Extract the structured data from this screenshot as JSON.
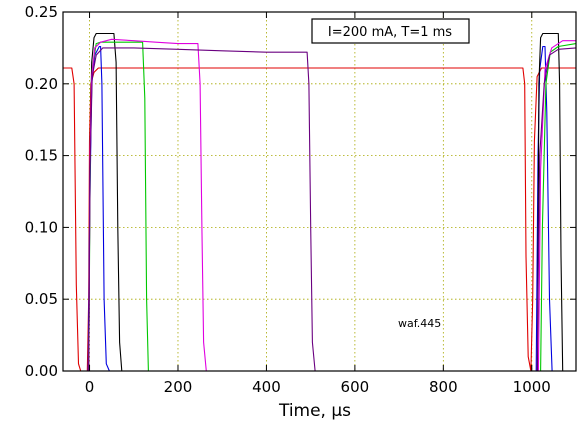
{
  "chart_data": {
    "type": "line",
    "xlabel": "Time, µs",
    "ylabel": "",
    "xlim": [
      -60,
      1100
    ],
    "ylim": [
      0,
      0.25
    ],
    "xticks": [
      0,
      200,
      400,
      600,
      800,
      1000
    ],
    "yticks": [
      0.0,
      0.05,
      0.1,
      0.15,
      0.2,
      0.25
    ],
    "xtick_labels": [
      "0",
      "200",
      "400",
      "600",
      "800",
      "1000"
    ],
    "ytick_labels": [
      "0.00",
      "0.05",
      "0.10",
      "0.15",
      "0.20",
      "0.25"
    ],
    "grid": true,
    "annotation_box": "I=200 mA, T=1 ms",
    "annotation_text": "waf.445",
    "series": [
      {
        "color": "#e00000",
        "points": [
          [
            -60,
            0.211
          ],
          [
            -40,
            0.211
          ],
          [
            -35,
            0.2
          ],
          [
            -30,
            0.06
          ],
          [
            -25,
            0.005
          ],
          [
            -20,
            0.0
          ],
          [
            -5,
            0.0
          ],
          [
            -2,
            0.05
          ],
          [
            0,
            0.16
          ],
          [
            3,
            0.2
          ],
          [
            10,
            0.208
          ],
          [
            20,
            0.211
          ],
          [
            980,
            0.211
          ],
          [
            984,
            0.2
          ],
          [
            987,
            0.08
          ],
          [
            992,
            0.01
          ],
          [
            998,
            0.0
          ],
          [
            1002,
            0.05
          ],
          [
            1006,
            0.16
          ],
          [
            1012,
            0.205
          ],
          [
            1022,
            0.211
          ],
          [
            1100,
            0.211
          ]
        ]
      },
      {
        "color": "#0000e0",
        "points": [
          [
            -60,
            0.0
          ],
          [
            -3,
            0.0
          ],
          [
            0,
            0.1
          ],
          [
            5,
            0.2
          ],
          [
            12,
            0.22
          ],
          [
            22,
            0.226
          ],
          [
            25,
            0.226
          ],
          [
            28,
            0.2
          ],
          [
            33,
            0.05
          ],
          [
            38,
            0.005
          ],
          [
            45,
            0.0
          ],
          [
            1010,
            0.0
          ],
          [
            1014,
            0.15
          ],
          [
            1018,
            0.21
          ],
          [
            1025,
            0.226
          ],
          [
            1030,
            0.226
          ],
          [
            1034,
            0.18
          ],
          [
            1040,
            0.05
          ],
          [
            1046,
            0.0
          ],
          [
            1100,
            0.0
          ]
        ]
      },
      {
        "color": "#000000",
        "points": [
          [
            -60,
            0.0
          ],
          [
            -2,
            0.0
          ],
          [
            1,
            0.15
          ],
          [
            5,
            0.215
          ],
          [
            10,
            0.232
          ],
          [
            15,
            0.235
          ],
          [
            55,
            0.235
          ],
          [
            60,
            0.215
          ],
          [
            64,
            0.1
          ],
          [
            68,
            0.02
          ],
          [
            73,
            0.0
          ],
          [
            1013,
            0.0
          ],
          [
            1016,
            0.2
          ],
          [
            1020,
            0.232
          ],
          [
            1025,
            0.235
          ],
          [
            1060,
            0.235
          ],
          [
            1063,
            0.2
          ],
          [
            1066,
            0.08
          ],
          [
            1070,
            0.0
          ],
          [
            1100,
            0.0
          ]
        ]
      },
      {
        "color": "#00c800",
        "points": [
          [
            -60,
            0.0
          ],
          [
            -2,
            0.0
          ],
          [
            2,
            0.16
          ],
          [
            6,
            0.21
          ],
          [
            15,
            0.228
          ],
          [
            25,
            0.229
          ],
          [
            120,
            0.229
          ],
          [
            125,
            0.19
          ],
          [
            129,
            0.05
          ],
          [
            133,
            0.0
          ],
          [
            1020,
            0.0
          ],
          [
            1024,
            0.1
          ],
          [
            1032,
            0.2
          ],
          [
            1042,
            0.222
          ],
          [
            1060,
            0.226
          ],
          [
            1100,
            0.228
          ]
        ]
      },
      {
        "color": "#e000e0",
        "points": [
          [
            -60,
            0.0
          ],
          [
            -2,
            0.0
          ],
          [
            1,
            0.15
          ],
          [
            5,
            0.205
          ],
          [
            12,
            0.225
          ],
          [
            25,
            0.229
          ],
          [
            50,
            0.231
          ],
          [
            100,
            0.23
          ],
          [
            150,
            0.229
          ],
          [
            200,
            0.228
          ],
          [
            245,
            0.228
          ],
          [
            250,
            0.2
          ],
          [
            254,
            0.1
          ],
          [
            258,
            0.02
          ],
          [
            264,
            0.0
          ],
          [
            1015,
            0.0
          ],
          [
            1020,
            0.14
          ],
          [
            1030,
            0.21
          ],
          [
            1045,
            0.225
          ],
          [
            1070,
            0.23
          ],
          [
            1100,
            0.23
          ]
        ]
      },
      {
        "color": "#6a0080",
        "points": [
          [
            -60,
            0.0
          ],
          [
            -2,
            0.0
          ],
          [
            1,
            0.14
          ],
          [
            6,
            0.205
          ],
          [
            15,
            0.22
          ],
          [
            30,
            0.225
          ],
          [
            100,
            0.225
          ],
          [
            200,
            0.224
          ],
          [
            300,
            0.223
          ],
          [
            400,
            0.222
          ],
          [
            492,
            0.222
          ],
          [
            496,
            0.2
          ],
          [
            500,
            0.1
          ],
          [
            504,
            0.02
          ],
          [
            510,
            0.0
          ],
          [
            1012,
            0.0
          ],
          [
            1018,
            0.15
          ],
          [
            1028,
            0.2
          ],
          [
            1040,
            0.22
          ],
          [
            1060,
            0.224
          ],
          [
            1100,
            0.225
          ]
        ]
      }
    ]
  }
}
